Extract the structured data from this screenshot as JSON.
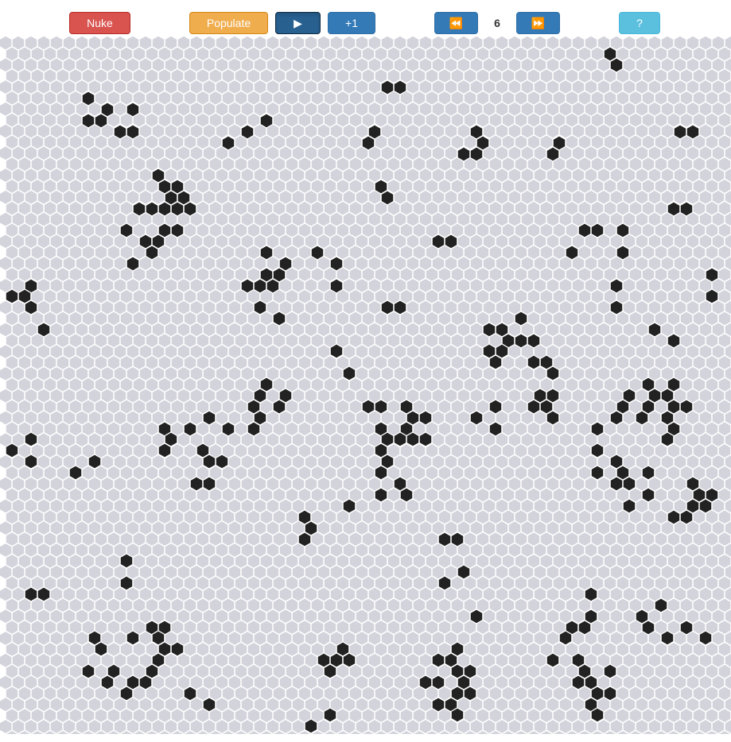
{
  "toolbar": {
    "nuke_label": "Nuke",
    "populate_label": "Populate",
    "play_label": "▶",
    "step_label": "+1",
    "slower_label": "⏪",
    "speed_value": "6",
    "faster_label": "⏩",
    "help_label": "?"
  },
  "board": {
    "empty_color": "#d3d3dc",
    "alive_color": "#222222",
    "grid_color": "#ffffff",
    "alive_cells": [
      [
        767,
        68
      ],
      [
        775,
        82
      ],
      [
        487,
        110
      ],
      [
        503,
        110
      ],
      [
        111,
        124
      ],
      [
        135,
        138
      ],
      [
        167,
        138
      ],
      [
        111,
        152
      ],
      [
        127,
        152
      ],
      [
        335,
        152
      ],
      [
        151,
        166
      ],
      [
        167,
        166
      ],
      [
        311,
        166
      ],
      [
        471,
        166
      ],
      [
        599,
        166
      ],
      [
        855,
        166
      ],
      [
        871,
        166
      ],
      [
        287,
        180
      ],
      [
        463,
        180
      ],
      [
        607,
        180
      ],
      [
        703,
        180
      ],
      [
        583,
        194
      ],
      [
        599,
        194
      ],
      [
        695,
        194
      ],
      [
        199,
        221
      ],
      [
        207,
        235
      ],
      [
        223,
        235
      ],
      [
        479,
        235
      ],
      [
        215,
        249
      ],
      [
        231,
        249
      ],
      [
        487,
        249
      ],
      [
        175,
        263
      ],
      [
        191,
        263
      ],
      [
        207,
        263
      ],
      [
        223,
        263
      ],
      [
        239,
        263
      ],
      [
        847,
        263
      ],
      [
        863,
        263
      ],
      [
        159,
        290
      ],
      [
        207,
        290
      ],
      [
        223,
        290
      ],
      [
        735,
        290
      ],
      [
        751,
        290
      ],
      [
        783,
        290
      ],
      [
        183,
        304
      ],
      [
        199,
        304
      ],
      [
        551,
        304
      ],
      [
        567,
        304
      ],
      [
        191,
        318
      ],
      [
        335,
        318
      ],
      [
        399,
        318
      ],
      [
        719,
        318
      ],
      [
        783,
        318
      ],
      [
        167,
        332
      ],
      [
        359,
        332
      ],
      [
        423,
        332
      ],
      [
        335,
        346
      ],
      [
        351,
        346
      ],
      [
        895,
        346
      ],
      [
        39,
        360
      ],
      [
        311,
        360
      ],
      [
        327,
        360
      ],
      [
        343,
        360
      ],
      [
        423,
        360
      ],
      [
        775,
        360
      ],
      [
        15,
        373
      ],
      [
        31,
        373
      ],
      [
        895,
        373
      ],
      [
        39,
        387
      ],
      [
        327,
        387
      ],
      [
        487,
        387
      ],
      [
        503,
        387
      ],
      [
        775,
        387
      ],
      [
        351,
        401
      ],
      [
        655,
        401
      ],
      [
        55,
        415
      ],
      [
        615,
        415
      ],
      [
        631,
        415
      ],
      [
        823,
        415
      ],
      [
        639,
        429
      ],
      [
        655,
        429
      ],
      [
        671,
        429
      ],
      [
        847,
        429
      ],
      [
        423,
        442
      ],
      [
        615,
        442
      ],
      [
        631,
        442
      ],
      [
        623,
        456
      ],
      [
        671,
        456
      ],
      [
        687,
        456
      ],
      [
        439,
        470
      ],
      [
        695,
        470
      ],
      [
        335,
        484
      ],
      [
        815,
        484
      ],
      [
        847,
        484
      ],
      [
        327,
        498
      ],
      [
        359,
        498
      ],
      [
        679,
        498
      ],
      [
        695,
        498
      ],
      [
        791,
        498
      ],
      [
        823,
        498
      ],
      [
        839,
        498
      ],
      [
        319,
        512
      ],
      [
        351,
        512
      ],
      [
        463,
        512
      ],
      [
        479,
        512
      ],
      [
        511,
        512
      ],
      [
        623,
        512
      ],
      [
        671,
        512
      ],
      [
        687,
        512
      ],
      [
        783,
        512
      ],
      [
        815,
        512
      ],
      [
        847,
        512
      ],
      [
        863,
        512
      ],
      [
        263,
        526
      ],
      [
        327,
        526
      ],
      [
        519,
        526
      ],
      [
        535,
        526
      ],
      [
        599,
        526
      ],
      [
        695,
        526
      ],
      [
        775,
        526
      ],
      [
        807,
        526
      ],
      [
        839,
        526
      ],
      [
        207,
        540
      ],
      [
        239,
        540
      ],
      [
        287,
        540
      ],
      [
        319,
        540
      ],
      [
        479,
        540
      ],
      [
        511,
        540
      ],
      [
        623,
        540
      ],
      [
        751,
        540
      ],
      [
        847,
        540
      ],
      [
        39,
        553
      ],
      [
        215,
        553
      ],
      [
        487,
        553
      ],
      [
        503,
        553
      ],
      [
        519,
        553
      ],
      [
        535,
        553
      ],
      [
        839,
        553
      ],
      [
        15,
        567
      ],
      [
        207,
        567
      ],
      [
        255,
        567
      ],
      [
        479,
        567
      ],
      [
        751,
        567
      ],
      [
        39,
        581
      ],
      [
        119,
        581
      ],
      [
        263,
        581
      ],
      [
        279,
        581
      ],
      [
        487,
        581
      ],
      [
        775,
        581
      ],
      [
        95,
        595
      ],
      [
        479,
        595
      ],
      [
        751,
        595
      ],
      [
        783,
        595
      ],
      [
        815,
        595
      ],
      [
        247,
        609
      ],
      [
        263,
        609
      ],
      [
        503,
        609
      ],
      [
        775,
        609
      ],
      [
        791,
        609
      ],
      [
        871,
        609
      ],
      [
        479,
        623
      ],
      [
        511,
        623
      ],
      [
        815,
        623
      ],
      [
        879,
        623
      ],
      [
        895,
        623
      ],
      [
        439,
        637
      ],
      [
        791,
        637
      ],
      [
        871,
        637
      ],
      [
        887,
        637
      ],
      [
        383,
        651
      ],
      [
        847,
        651
      ],
      [
        863,
        651
      ],
      [
        391,
        665
      ],
      [
        383,
        679
      ],
      [
        559,
        679
      ],
      [
        575,
        679
      ],
      [
        159,
        706
      ],
      [
        583,
        720
      ],
      [
        159,
        734
      ],
      [
        559,
        734
      ],
      [
        39,
        748
      ],
      [
        55,
        748
      ],
      [
        743,
        748
      ],
      [
        831,
        762
      ],
      [
        599,
        776
      ],
      [
        743,
        776
      ],
      [
        807,
        776
      ],
      [
        191,
        790
      ],
      [
        207,
        790
      ],
      [
        719,
        790
      ],
      [
        735,
        790
      ],
      [
        815,
        790
      ],
      [
        863,
        790
      ],
      [
        119,
        803
      ],
      [
        167,
        803
      ],
      [
        199,
        803
      ],
      [
        711,
        803
      ],
      [
        839,
        803
      ],
      [
        887,
        803
      ],
      [
        127,
        817
      ],
      [
        207,
        817
      ],
      [
        223,
        817
      ],
      [
        431,
        817
      ],
      [
        575,
        817
      ],
      [
        199,
        831
      ],
      [
        407,
        831
      ],
      [
        423,
        831
      ],
      [
        439,
        831
      ],
      [
        551,
        831
      ],
      [
        567,
        831
      ],
      [
        695,
        831
      ],
      [
        727,
        831
      ],
      [
        111,
        845
      ],
      [
        143,
        845
      ],
      [
        191,
        845
      ],
      [
        415,
        845
      ],
      [
        575,
        845
      ],
      [
        591,
        845
      ],
      [
        735,
        845
      ],
      [
        767,
        845
      ],
      [
        135,
        859
      ],
      [
        167,
        859
      ],
      [
        183,
        859
      ],
      [
        535,
        859
      ],
      [
        551,
        859
      ],
      [
        583,
        859
      ],
      [
        727,
        859
      ],
      [
        743,
        859
      ],
      [
        159,
        873
      ],
      [
        239,
        873
      ],
      [
        575,
        873
      ],
      [
        591,
        873
      ],
      [
        751,
        873
      ],
      [
        767,
        873
      ],
      [
        263,
        887
      ],
      [
        551,
        887
      ],
      [
        567,
        887
      ],
      [
        743,
        887
      ],
      [
        415,
        900
      ],
      [
        575,
        900
      ],
      [
        751,
        900
      ],
      [
        391,
        914
      ]
    ]
  }
}
